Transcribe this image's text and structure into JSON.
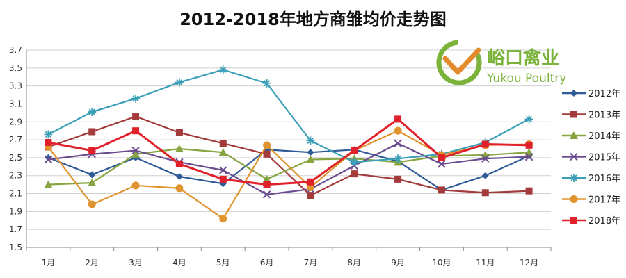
{
  "chart_data": {
    "type": "line",
    "title": "2012-2018年地方商雏均价走势图",
    "xlabel": "",
    "ylabel": "",
    "ylim": [
      1.5,
      3.7
    ],
    "yticks": [
      "1.5",
      "1.7",
      "1.9",
      "2.1",
      "2.3",
      "2.5",
      "2.7",
      "2.9",
      "3.1",
      "3.3",
      "3.5",
      "3.7"
    ],
    "categories": [
      "1月",
      "2月",
      "3月",
      "4月",
      "5月",
      "6月",
      "7月",
      "8月",
      "9月",
      "10月",
      "11月",
      "12月"
    ],
    "grid": true,
    "legend_position": "right",
    "series": [
      {
        "name": "2012年",
        "color": "#2e5b97",
        "marker": "diamond",
        "values": [
          2.5,
          2.31,
          2.5,
          2.29,
          2.21,
          2.59,
          2.56,
          2.59,
          2.46,
          2.14,
          2.3,
          2.52
        ]
      },
      {
        "name": "2013年",
        "color": "#a33b3b",
        "marker": "square",
        "values": [
          2.62,
          2.79,
          2.96,
          2.78,
          2.66,
          2.54,
          2.08,
          2.32,
          2.26,
          2.14,
          2.11,
          2.13
        ]
      },
      {
        "name": "2014年",
        "color": "#86a43f",
        "marker": "triangle",
        "values": [
          2.2,
          2.22,
          2.54,
          2.6,
          2.56,
          2.26,
          2.48,
          2.49,
          2.45,
          2.52,
          2.53,
          2.56
        ]
      },
      {
        "name": "2015年",
        "color": "#6b4d8f",
        "marker": "x",
        "values": [
          2.48,
          2.54,
          2.58,
          2.45,
          2.36,
          2.09,
          2.15,
          2.41,
          2.66,
          2.43,
          2.49,
          2.51
        ]
      },
      {
        "name": "2016年",
        "color": "#3b9fb8",
        "marker": "star",
        "values": [
          2.76,
          3.01,
          3.16,
          3.34,
          3.48,
          3.33,
          2.69,
          2.45,
          2.49,
          2.54,
          2.67,
          2.93
        ]
      },
      {
        "name": "2017年",
        "color": "#e0942f",
        "marker": "circle",
        "values": [
          2.62,
          1.98,
          2.19,
          2.16,
          1.82,
          2.64,
          2.17,
          2.58,
          2.8,
          2.53,
          2.64,
          2.65
        ]
      },
      {
        "name": "2018年",
        "color": "#e0202a",
        "marker": "square",
        "values": [
          2.67,
          2.58,
          2.8,
          2.43,
          2.26,
          2.2,
          2.23,
          2.58,
          2.93,
          2.5,
          2.65,
          2.64
        ]
      }
    ]
  },
  "logo": {
    "text_cn": "峪口禽业",
    "text_en": "Yukou Poultry"
  }
}
